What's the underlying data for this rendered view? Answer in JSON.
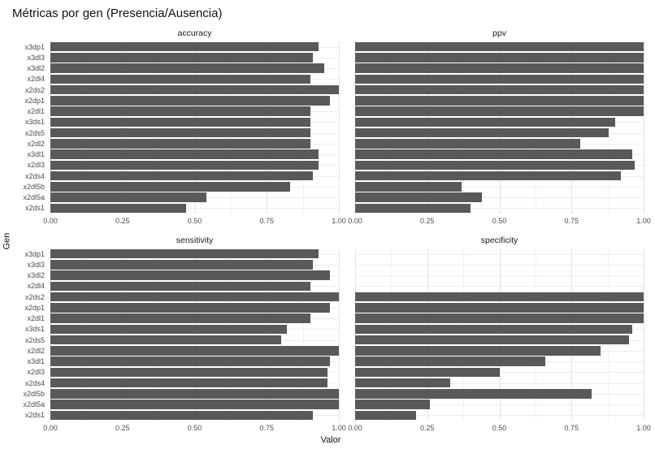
{
  "title": "Métricas por gen (Presencia/Ausencia)",
  "xlabel": "Valor",
  "ylabel": "Gen",
  "chart_data": {
    "type": "bar",
    "orientation": "horizontal",
    "title": "Métricas por gen (Presencia/Ausencia)",
    "xlabel": "Valor",
    "ylabel": "Gen",
    "xlim": [
      0,
      1
    ],
    "grid": true,
    "legend": "none",
    "bar_color": "#595959",
    "x_ticks": [
      "0.00",
      "0.25",
      "0.50",
      "0.75",
      "1.00"
    ],
    "categories": [
      "x3dp1",
      "x3dl3",
      "x3dl2",
      "x2dl4",
      "x2ds2",
      "x2dp1",
      "x2dl1",
      "x3ds1",
      "x2ds5",
      "x2dl2",
      "x3dl1",
      "x2dl3",
      "x2ds4",
      "x2dl5b",
      "x2dl5a",
      "x2ds1"
    ],
    "series": [
      {
        "name": "accuracy",
        "values": [
          0.93,
          0.91,
          0.95,
          0.9,
          1.0,
          0.97,
          0.9,
          0.9,
          0.9,
          0.9,
          0.93,
          0.93,
          0.91,
          0.83,
          0.54,
          0.47
        ]
      },
      {
        "name": "ppv",
        "values": [
          1.0,
          1.0,
          1.0,
          1.0,
          1.0,
          1.0,
          1.0,
          0.9,
          0.88,
          0.78,
          0.96,
          0.97,
          0.92,
          0.37,
          0.44,
          0.4
        ]
      },
      {
        "name": "sensitivity",
        "values": [
          0.93,
          0.91,
          0.97,
          0.9,
          1.0,
          0.97,
          0.9,
          0.82,
          0.8,
          1.0,
          0.97,
          0.96,
          0.96,
          1.0,
          1.0,
          0.91
        ]
      },
      {
        "name": "specificity",
        "values": [
          0.0,
          0.0,
          0.0,
          0.0,
          1.0,
          1.0,
          1.0,
          0.96,
          0.95,
          0.85,
          0.66,
          0.5,
          0.33,
          0.82,
          0.26,
          0.21
        ]
      }
    ]
  }
}
